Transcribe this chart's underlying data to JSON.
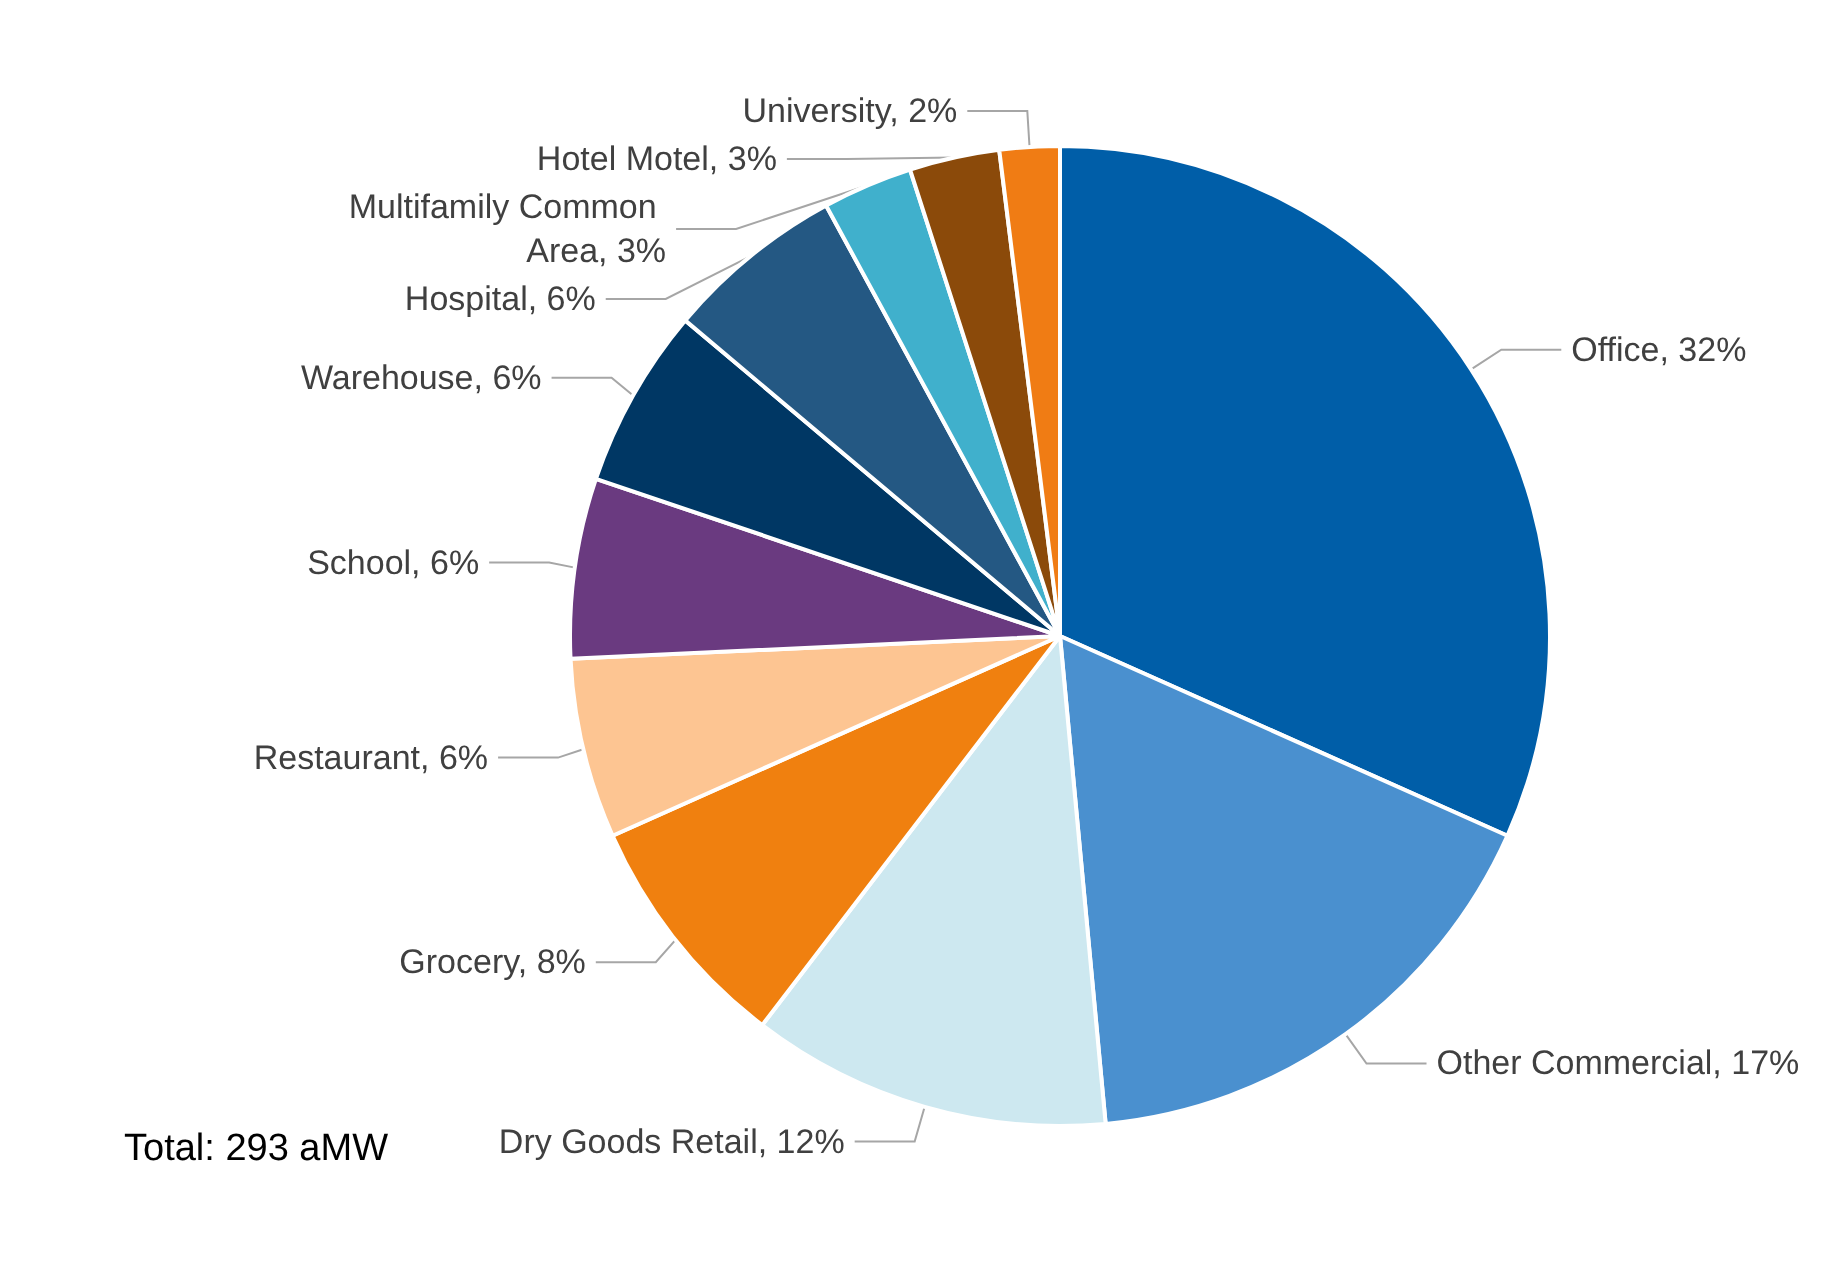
{
  "chart_data": {
    "type": "pie",
    "categories": [
      "Office",
      "Other Commercial",
      "Dry Goods Retail",
      "Grocery",
      "Restaurant",
      "School",
      "Warehouse",
      "Hospital",
      "Multifamily Common Area",
      "Hotel Motel",
      "University"
    ],
    "values": [
      32,
      17,
      12,
      8,
      6,
      6,
      6,
      6,
      3,
      3,
      2
    ],
    "value_labels": [
      "32%",
      "17%",
      "12%",
      "8%",
      "6%",
      "6%",
      "6%",
      "6%",
      "3%",
      "3%",
      "2%"
    ],
    "colors": [
      "#005ea8",
      "#4a90cf",
      "#cde8f0",
      "#f0800f",
      "#fdc592",
      "#6a3a80",
      "#003764",
      "#245883",
      "#40b0cc",
      "#8b4a0a",
      "#f07c14"
    ],
    "annotations": [
      "Total: 293 aMW"
    ],
    "legend": false
  }
}
